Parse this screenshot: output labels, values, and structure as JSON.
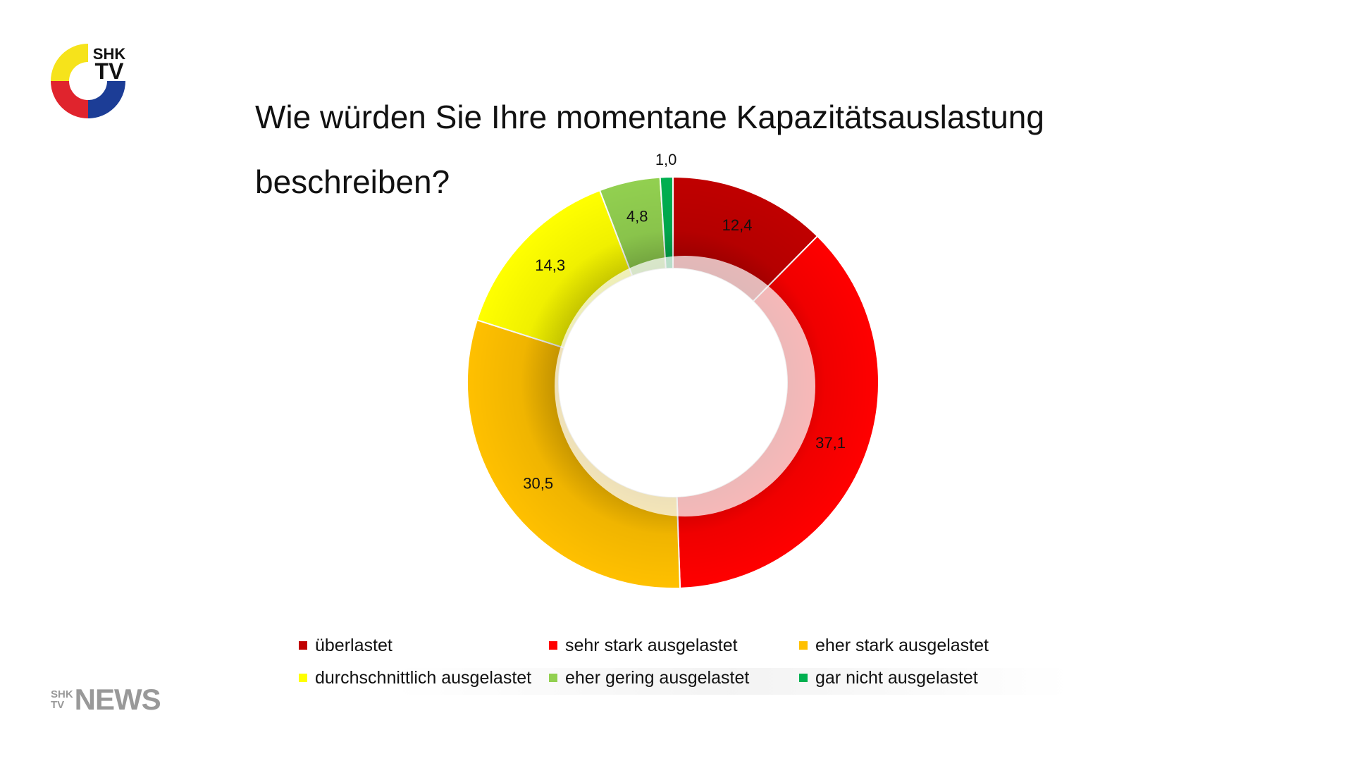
{
  "brand": {
    "logo_text_top": "SHK",
    "logo_text_bottom": "TV",
    "news_mini_top": "SHK",
    "news_mini_bottom": "TV",
    "news_word": "NEWS",
    "logo_colors": [
      "#f6e31b",
      "#e0242d",
      "#1c3d96"
    ]
  },
  "title": {
    "line1": "Wie würden Sie Ihre momentane Kapazitätsauslastung",
    "line2": "beschreiben?"
  },
  "player": {
    "overlay_icon": "play-icon"
  },
  "chart_data": {
    "type": "pie",
    "variant": "donut",
    "categories": [
      "überlastet",
      "sehr stark ausgelastet",
      "eher stark ausgelastet",
      "durchschnittlich ausgelastet",
      "eher gering ausgelastet",
      "gar nicht ausgelastet"
    ],
    "values": [
      12.4,
      37.1,
      30.5,
      14.3,
      4.8,
      1.0
    ],
    "labels": [
      "12,4",
      "37,1",
      "30,5",
      "14,3",
      "4,8",
      "1,0"
    ],
    "colors": [
      "#c00000",
      "#ff0000",
      "#ffc000",
      "#ffff00",
      "#92d050",
      "#00b050"
    ],
    "legend": "bottom"
  }
}
